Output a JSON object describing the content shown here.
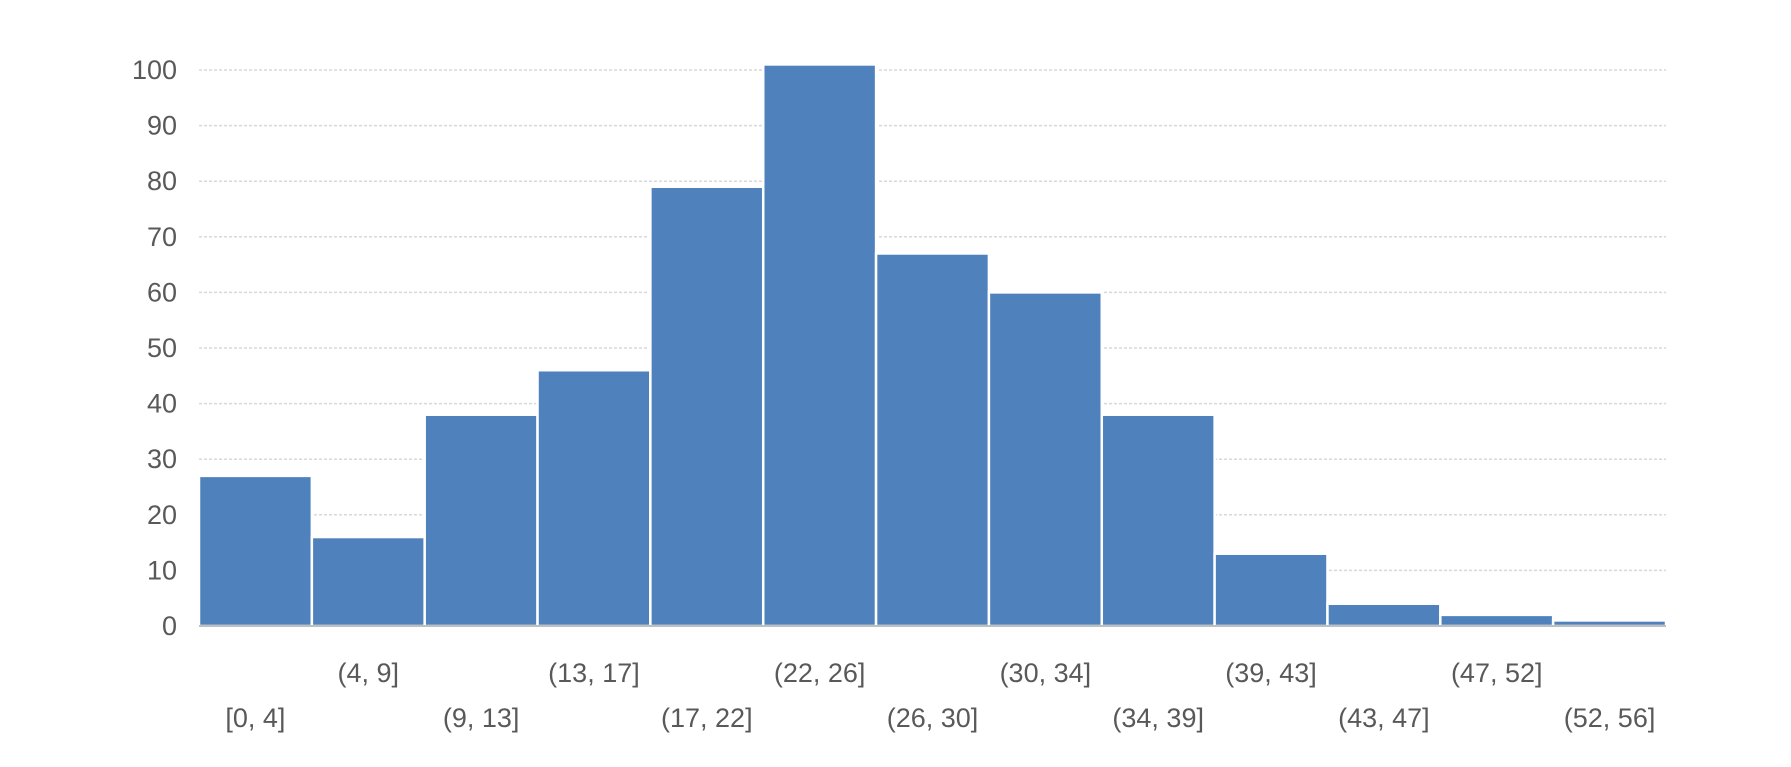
{
  "chart_data": {
    "type": "bar",
    "title": "",
    "xlabel": "",
    "ylabel": "",
    "categories": [
      "[0, 4]",
      "(4, 9]",
      "(9, 13]",
      "(13, 17]",
      "(17, 22]",
      "(22, 26]",
      "(26, 30]",
      "(30, 34]",
      "(34, 39]",
      "(39, 43]",
      "(43, 47]",
      "(47, 52]",
      "(52, 56]"
    ],
    "values": [
      27,
      16,
      38,
      46,
      79,
      101,
      67,
      60,
      38,
      13,
      4,
      2,
      1
    ],
    "ylim": [
      0,
      100
    ],
    "yticks": [
      0,
      10,
      20,
      30,
      40,
      50,
      60,
      70,
      80,
      90,
      100
    ],
    "bar_color": "#4f81bd",
    "grid": true,
    "legend": "none"
  }
}
